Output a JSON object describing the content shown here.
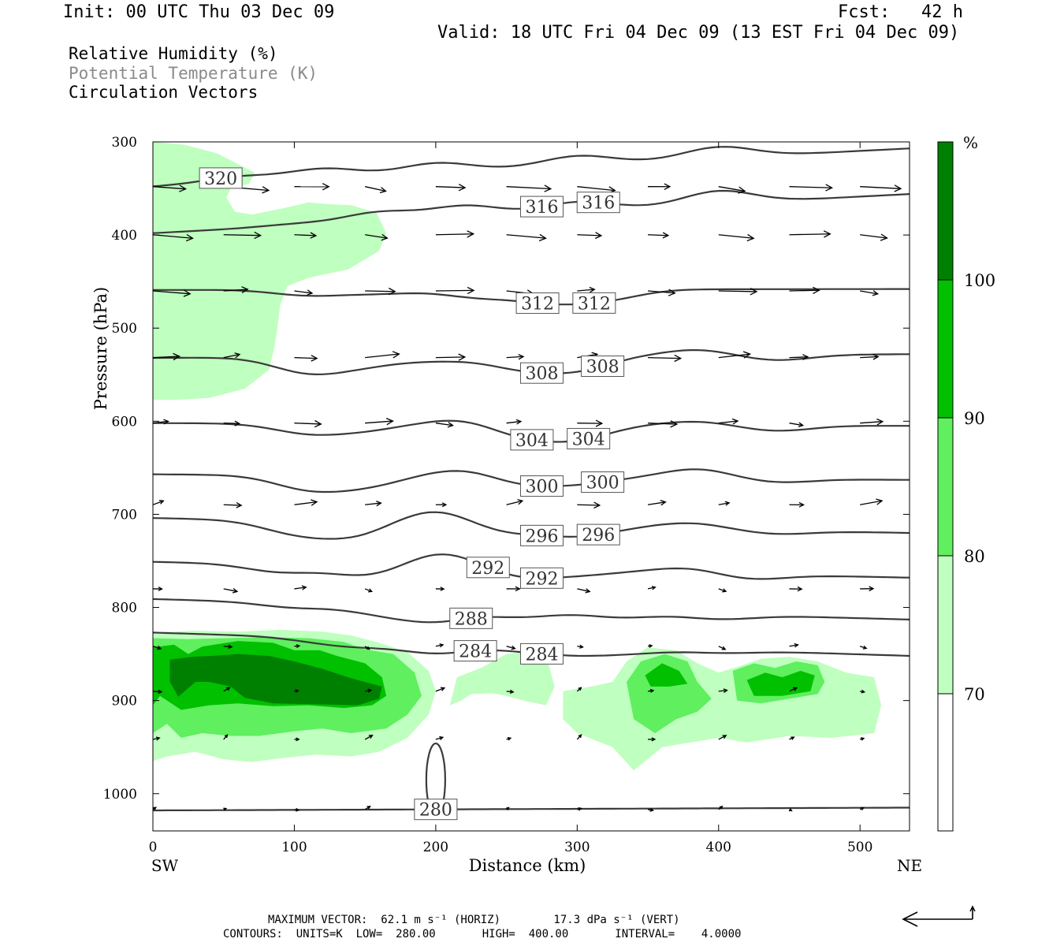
{
  "header": {
    "init": "Init: 00 UTC Thu 03 Dec 09",
    "fcst": "Fcst:   42 h",
    "valid": "Valid: 18 UTC Fri 04 Dec 09 (13 EST Fri 04 Dec 09)"
  },
  "fields": [
    {
      "label": "Relative Humidity (%)",
      "color": "#000000"
    },
    {
      "label": "Potential Temperature (K)",
      "color": "#8a8a8a"
    },
    {
      "label": "Circulation Vectors",
      "color": "#000000"
    }
  ],
  "colors": {
    "rh70": "#bfffbf",
    "rh80": "#5fef5f",
    "rh90": "#00c000",
    "rh100": "#008000",
    "contour": "#3a3a3a"
  },
  "chart_data": {
    "type": "cross-section",
    "xlabel": "Distance (km)",
    "ylabel": "Pressure (hPa)",
    "x_ticks": [
      0,
      100,
      200,
      300,
      400,
      500
    ],
    "y_ticks": [
      300,
      400,
      500,
      600,
      700,
      800,
      900,
      1000
    ],
    "xlim": [
      0,
      535
    ],
    "ylim": [
      300,
      1040
    ],
    "y_inverted": true,
    "x_end_labels": {
      "left": "SW",
      "right": "NE"
    },
    "colorbar": {
      "unit": "%",
      "levels": [
        70,
        80,
        90,
        100
      ],
      "tick_labels": [
        "100",
        "90",
        "80",
        "70"
      ]
    },
    "theta_contours": [
      {
        "theta": 280,
        "p_left": 1018,
        "p_right": 1015,
        "labels_km": [
          200
        ]
      },
      {
        "theta": 284,
        "p_left": 827,
        "p_right": 852,
        "labels_km": [
          228,
          275
        ]
      },
      {
        "theta": 288,
        "p_left": 791,
        "p_right": 813,
        "labels_km": [
          225
        ]
      },
      {
        "theta": 292,
        "p_left": 751,
        "p_right": 768,
        "labels_km": [
          237,
          275
        ]
      },
      {
        "theta": 296,
        "p_left": 704,
        "p_right": 720,
        "labels_km": [
          275,
          315
        ]
      },
      {
        "theta": 300,
        "p_left": 657,
        "p_right": 663,
        "labels_km": [
          275,
          318
        ]
      },
      {
        "theta": 304,
        "p_left": 602,
        "p_right": 605,
        "labels_km": [
          268,
          308
        ]
      },
      {
        "theta": 308,
        "p_left": 532,
        "p_right": 528,
        "labels_km": [
          275,
          318
        ]
      },
      {
        "theta": 312,
        "p_left": 459,
        "p_right": 458,
        "labels_km": [
          272,
          312
        ]
      },
      {
        "theta": 316,
        "p_left": 398,
        "p_right": 356,
        "labels_km": [
          275,
          315
        ]
      },
      {
        "theta": 320,
        "p_left": 348,
        "p_right": 307,
        "labels_km": [
          48
        ]
      }
    ],
    "rh_regions": [
      {
        "level": 70,
        "desc": "upper-left moist region, 0-165 km, 300-580 hPa"
      },
      {
        "level": 70,
        "desc": "low-level band, 0-200 km, 830-970 hPa"
      },
      {
        "level": 80,
        "desc": "low-level core, 0-190 km, 830-940 hPa"
      },
      {
        "level": 90,
        "desc": "low-level core, 0-165 km, 840-910 hPa"
      },
      {
        "level": 100,
        "desc": "low-level core, 10-165 km, 855-905 hPa"
      },
      {
        "level": 70,
        "desc": "mid band, 210-280 km, 845-900 hPa"
      },
      {
        "level": 70,
        "desc": "right band, 290-515 km, 835-975 hPa"
      },
      {
        "level": 80,
        "desc": "right cores, 335-470 km, 850-945 hPa"
      },
      {
        "level": 90,
        "desc": "right cores, 345-450 km, 860-895 hPa"
      }
    ],
    "wind_field": "mostly westerly flow, strongest aloft near 300-400 hPa"
  },
  "footer": {
    "max_vector": "MAXIMUM VECTOR:  62.1 m s⁻¹ (HORIZ)        17.3 dPa s⁻¹ (VERT)",
    "contours": "CONTOURS:  UNITS=K  LOW=  280.00       HIGH=  400.00       INTERVAL=    4.0000"
  }
}
